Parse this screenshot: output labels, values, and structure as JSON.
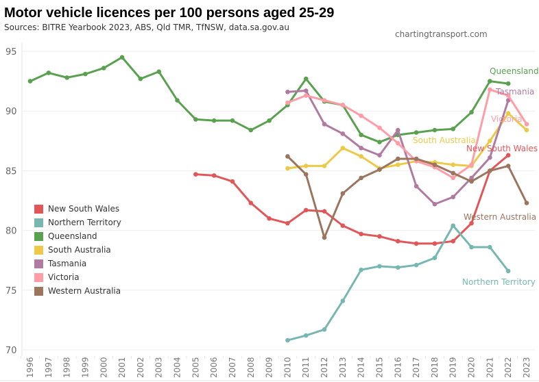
{
  "header": {
    "title": "Motor vehicle licences per 100 persons aged 25-29",
    "subtitle": "Sources: BITRE Yearbook 2023, ABS, Qld TMR, TfNSW, data.sa.gov.au",
    "credit": "chartingtransport.com"
  },
  "chart_data": {
    "type": "line",
    "title": "Motor vehicle licences per 100 persons aged 25-29",
    "xlabel": "",
    "ylabel": "",
    "ylim": [
      70,
      95.5
    ],
    "yticks": [
      70,
      75,
      80,
      85,
      90,
      95
    ],
    "grid": true,
    "legend_placement": "left-middle",
    "x": [
      "1996",
      "1997",
      "1998",
      "1999",
      "2000",
      "2001",
      "2002",
      "2003",
      "2004",
      "2005",
      "2006",
      "2007",
      "2008",
      "2009",
      "2010",
      "2011",
      "2012",
      "2013",
      "2014",
      "2015",
      "2016",
      "2017",
      "2018",
      "2019",
      "2020",
      "2021",
      "2022",
      "2023"
    ],
    "series": [
      {
        "name": "New South Wales",
        "color": "#e15759",
        "start": "2005",
        "values": [
          84.7,
          84.6,
          84.1,
          82.3,
          81.0,
          80.6,
          81.7,
          81.6,
          80.4,
          79.7,
          79.5,
          79.1,
          78.9,
          78.9,
          79.1,
          80.6,
          85.0,
          86.3
        ]
      },
      {
        "name": "Northern Territory",
        "color": "#76b7b2",
        "start": "2010",
        "values": [
          70.8,
          71.2,
          71.7,
          74.1,
          76.7,
          77.0,
          76.9,
          77.1,
          77.7,
          80.4,
          78.6,
          78.6,
          76.6
        ]
      },
      {
        "name": "Queensland",
        "color": "#59a14f",
        "start": "1996",
        "values": [
          92.5,
          93.2,
          92.8,
          93.1,
          93.6,
          94.5,
          92.7,
          93.3,
          90.9,
          89.3,
          89.2,
          89.2,
          88.4,
          89.2,
          90.5,
          92.7,
          90.8,
          90.5,
          88.0,
          87.4,
          88.0,
          88.2,
          88.4,
          88.5,
          89.9,
          92.5,
          92.3
        ]
      },
      {
        "name": "South Australia",
        "color": "#edc948",
        "start": "2010",
        "values": [
          85.2,
          85.4,
          85.4,
          86.9,
          86.2,
          85.2,
          85.5,
          85.8,
          85.7,
          85.5,
          85.4,
          87.5,
          89.8,
          88.4
        ]
      },
      {
        "name": "Tasmania",
        "color": "#b07aa1",
        "start": "2010",
        "values": [
          91.6,
          91.7,
          88.9,
          88.1,
          86.9,
          86.3,
          88.4,
          83.7,
          82.2,
          82.8,
          84.4,
          86.1,
          90.9
        ]
      },
      {
        "name": "Victoria",
        "color": "#ff9da7",
        "start": "2010",
        "values": [
          90.7,
          91.3,
          90.9,
          90.5,
          89.6,
          88.6,
          87.3,
          85.8,
          85.3,
          84.4,
          85.5,
          91.8,
          91.3,
          88.9
        ]
      },
      {
        "name": "Western Australia",
        "color": "#9c755f",
        "start": "2010",
        "values": [
          86.2,
          84.7,
          79.4,
          83.1,
          84.4,
          85.1,
          86.0,
          86.0,
          85.5,
          84.8,
          84.1,
          85.0,
          85.4,
          82.3
        ]
      }
    ],
    "annotations": [
      {
        "text": "Queensland",
        "series": "Queensland"
      },
      {
        "text": "Tasmania",
        "series": "Tasmania"
      },
      {
        "text": "Victoria",
        "series": "Victoria"
      },
      {
        "text": "South Australia",
        "series": "South Australia"
      },
      {
        "text": "New South Wales",
        "series": "New South Wales"
      },
      {
        "text": "Western Australia",
        "series": "Western Australia"
      },
      {
        "text": "Northern Territory",
        "series": "Northern Territory"
      }
    ]
  }
}
